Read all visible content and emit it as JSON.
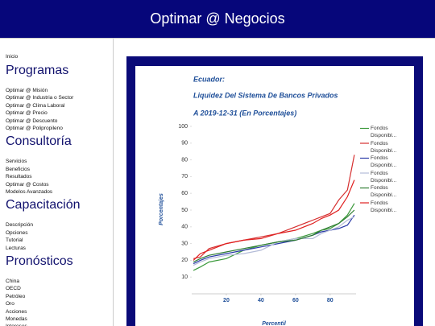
{
  "header": {
    "title": "Optimar @ Negocios"
  },
  "sidebar": {
    "home": "Inicio",
    "sections": [
      {
        "heading": "Programas",
        "links": [
          "Optimar @ Misión",
          "Optimar @ Industria o Sector",
          "Optimar @ Clima Laboral",
          "Optimar @ Precio",
          "Optimar @ Descuento",
          "Optimar @ Polipropileno"
        ]
      },
      {
        "heading": "Consultoría",
        "links": [
          "Servicios",
          "Beneficios",
          "Resultados",
          "Optimar @ Costos",
          "Modelos Avanzados"
        ]
      },
      {
        "heading": "Capacitación",
        "links": [
          "Descripción",
          "Opciones",
          "Tutorial",
          "Lecturas"
        ]
      },
      {
        "heading": "Pronósticos",
        "links": [
          "China",
          "OECD",
          "Petróleo",
          "Oro",
          "Acciones",
          "Monedas",
          "Intereses"
        ]
      }
    ]
  },
  "chart_data": {
    "type": "line",
    "title_lines": [
      "Ecuador:",
      "Liquidez Del Sistema De Bancos Privados",
      "A 2019-12-31 (En Porcentajes)"
    ],
    "x_label": "Percentil",
    "y_label": "Porcentajes",
    "x": [
      1,
      5,
      10,
      20,
      30,
      40,
      50,
      60,
      70,
      75,
      80,
      85,
      90,
      94
    ],
    "xlim": [
      0,
      95
    ],
    "xticks": [
      20,
      40,
      60,
      80
    ],
    "ylim": [
      0,
      100
    ],
    "yticks": [
      10,
      20,
      30,
      40,
      50,
      60,
      70,
      80,
      90,
      100
    ],
    "grid": false,
    "series": [
      {
        "name": "Fondos Disponibl...",
        "color": "#3c9a3c",
        "values": [
          14,
          16,
          19,
          21,
          26,
          29,
          31,
          33,
          36,
          38,
          39,
          42,
          47,
          54
        ]
      },
      {
        "name": "Fondos Disponibl...",
        "color": "#d63030",
        "values": [
          21,
          22,
          27,
          30,
          32,
          34,
          36,
          40,
          44,
          46,
          48,
          56,
          62,
          83
        ]
      },
      {
        "name": "Fondos Disponibl...",
        "color": "#2a3aa8",
        "values": [
          18,
          20,
          22,
          24,
          26,
          28,
          30,
          32,
          35,
          37,
          38,
          39,
          41,
          47
        ]
      },
      {
        "name": "Fondos Disponibl...",
        "color": "#b4bcd8",
        "values": [
          17,
          19,
          21,
          23,
          24,
          26,
          31,
          33,
          33,
          36,
          38,
          40,
          44,
          46
        ]
      },
      {
        "name": "Fondos Disponibl...",
        "color": "#2e7d32",
        "values": [
          19,
          21,
          23,
          25,
          27,
          29,
          31,
          32,
          35,
          38,
          40,
          42,
          46,
          50
        ]
      },
      {
        "name": "Fondos Disponibl...",
        "color": "#e02020",
        "values": [
          20,
          24,
          26,
          30,
          32,
          33,
          36,
          38,
          42,
          45,
          47,
          50,
          58,
          68
        ]
      }
    ]
  }
}
